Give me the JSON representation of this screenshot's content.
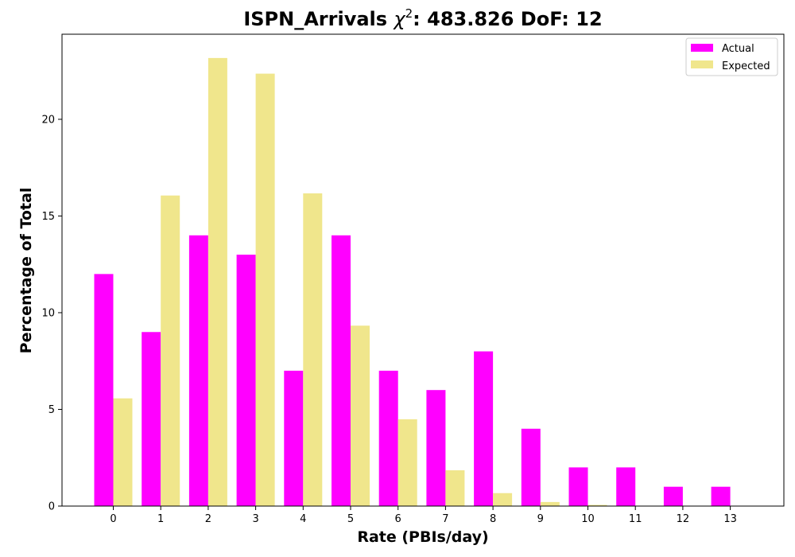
{
  "chart_data": {
    "type": "bar",
    "title_prefix": "ISPN_Arrivals ",
    "title_chi": "χ",
    "title_sup": "2",
    "title_suffix": ": 483.826 DoF: 12",
    "xlabel": "Rate (PBIs/day)",
    "ylabel": "Percentage of Total",
    "categories": [
      "0",
      "1",
      "2",
      "3",
      "4",
      "5",
      "6",
      "7",
      "8",
      "9",
      "10",
      "11",
      "12",
      "13"
    ],
    "series": [
      {
        "name": "Actual",
        "color": "#ff00ff",
        "values": [
          12,
          9,
          14,
          13,
          7,
          14,
          7,
          6,
          8,
          4,
          2,
          2,
          1,
          1
        ]
      },
      {
        "name": "Expected",
        "color": "#f0e68c",
        "values": [
          5.57,
          16.06,
          23.17,
          22.36,
          16.17,
          9.33,
          4.49,
          1.85,
          0.67,
          0.21,
          0.06,
          0.02,
          0,
          0
        ]
      }
    ],
    "ylim": [
      0,
      24.4
    ],
    "yticks": [
      0,
      5,
      10,
      15,
      20
    ],
    "legend": "top-right",
    "grid": false
  }
}
